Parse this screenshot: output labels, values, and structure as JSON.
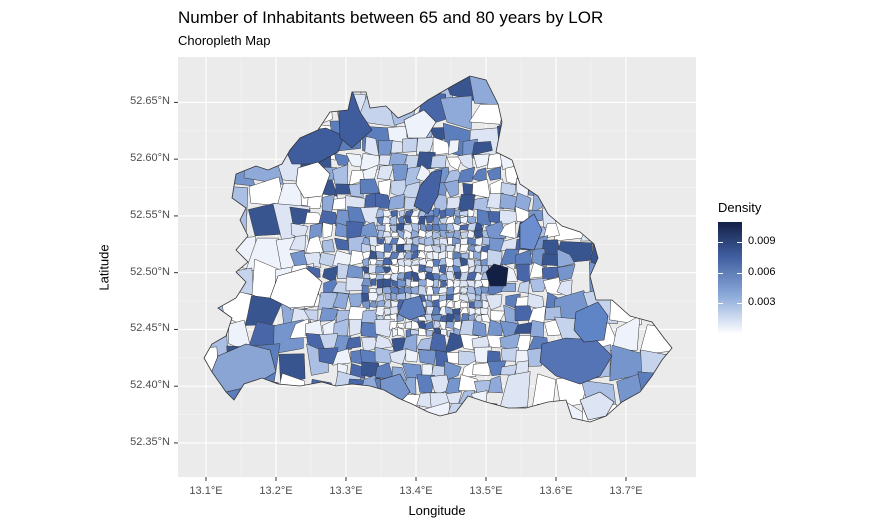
{
  "title": "Number of Inhabitants between 65 and 80 years by LOR",
  "subtitle": "Choropleth Map",
  "chart_data": {
    "type": "choropleth",
    "xlabel": "Longitude",
    "ylabel": "Latitude",
    "x_ticks": [
      "13.1°E",
      "13.2°E",
      "13.3°E",
      "13.4°E",
      "13.5°E",
      "13.6°E",
      "13.7°E"
    ],
    "y_ticks": [
      "52.35°N",
      "52.40°N",
      "52.45°N",
      "52.50°N",
      "52.55°N",
      "52.60°N",
      "52.65°N"
    ],
    "x_tick_values": [
      13.1,
      13.2,
      13.3,
      13.4,
      13.5,
      13.6,
      13.7
    ],
    "y_tick_values": [
      52.35,
      52.4,
      52.45,
      52.5,
      52.55,
      52.6,
      52.65
    ],
    "xlim": [
      13.06,
      13.8
    ],
    "ylim": [
      52.32,
      52.69
    ],
    "grid": true,
    "legend": {
      "title": "Density",
      "position": "right",
      "ticks": [
        "0.009",
        "0.006",
        "0.003"
      ],
      "tick_values": [
        0.009,
        0.006,
        0.003
      ],
      "range": [
        0,
        0.011
      ],
      "low_color": "#ffffff",
      "high_color": "#132046"
    }
  }
}
